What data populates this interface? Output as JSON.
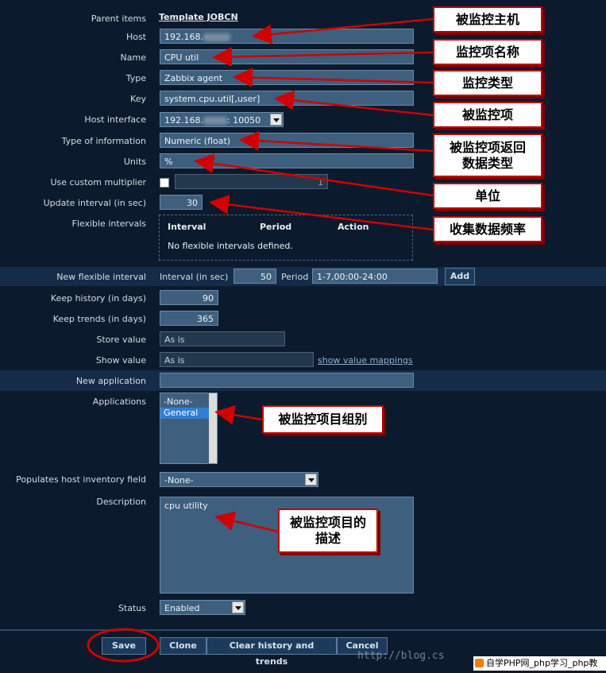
{
  "form": {
    "parent_items": {
      "label": "Parent items",
      "value": "Template JOBCN"
    },
    "host": {
      "label": "Host",
      "value_prefix": "192.168."
    },
    "name": {
      "label": "Name",
      "value": "CPU util"
    },
    "type": {
      "label": "Type",
      "value": "Zabbix agent"
    },
    "key": {
      "label": "Key",
      "value": "system.cpu.util[,user]"
    },
    "host_interface": {
      "label": "Host interface",
      "value_prefix": "192.168.",
      "value_suffix": ": 10050"
    },
    "type_of_information": {
      "label": "Type of information",
      "value": "Numeric (float)"
    },
    "units": {
      "label": "Units",
      "value": "%"
    },
    "custom_multiplier": {
      "label": "Use custom multiplier",
      "value": "1",
      "checked": false
    },
    "update_interval": {
      "label": "Update interval (in sec)",
      "value": "30"
    },
    "flexible_intervals": {
      "label": "Flexible intervals",
      "columns": [
        "Interval",
        "Period",
        "Action"
      ],
      "empty_text": "No flexible intervals defined."
    },
    "new_flexible_interval": {
      "label": "New flexible interval",
      "interval_label": "Interval (in sec)",
      "interval_value": "50",
      "period_label": "Period",
      "period_value": "1-7,00:00-24:00",
      "add_label": "Add"
    },
    "keep_history": {
      "label": "Keep history (in days)",
      "value": "90"
    },
    "keep_trends": {
      "label": "Keep trends (in days)",
      "value": "365"
    },
    "store_value": {
      "label": "Store value",
      "value": "As is"
    },
    "show_value": {
      "label": "Show value",
      "value": "As is",
      "link": "show value mappings"
    },
    "new_application": {
      "label": "New application",
      "value": ""
    },
    "applications": {
      "label": "Applications",
      "options": [
        "-None-",
        "General"
      ],
      "selected": "General"
    },
    "inventory_field": {
      "label": "Populates host inventory field",
      "value": "-None-"
    },
    "description": {
      "label": "Description",
      "value": "cpu utility"
    },
    "status": {
      "label": "Status",
      "value": "Enabled"
    }
  },
  "buttons": {
    "save": "Save",
    "clone": "Clone",
    "clear": "Clear history and trends",
    "cancel": "Cancel"
  },
  "annotations": {
    "host": "被监控主机",
    "name": "监控项名称",
    "type": "监控类型",
    "key": "被监控项",
    "info_type_1": "被监控项返回",
    "info_type_2": "数据类型",
    "units": "单位",
    "interval": "收集数据频率",
    "app_group": "被监控项目组别",
    "desc_1": "被监控项目的",
    "desc_2": "描述"
  },
  "watermark": {
    "url": "http://blog.cs",
    "site": "自学PHP网_php学习_php教"
  },
  "colors": {
    "background": "#0b1a2c",
    "input": "#3e5f7e",
    "callout_border": "#c00000",
    "arrow": "#d00000"
  }
}
